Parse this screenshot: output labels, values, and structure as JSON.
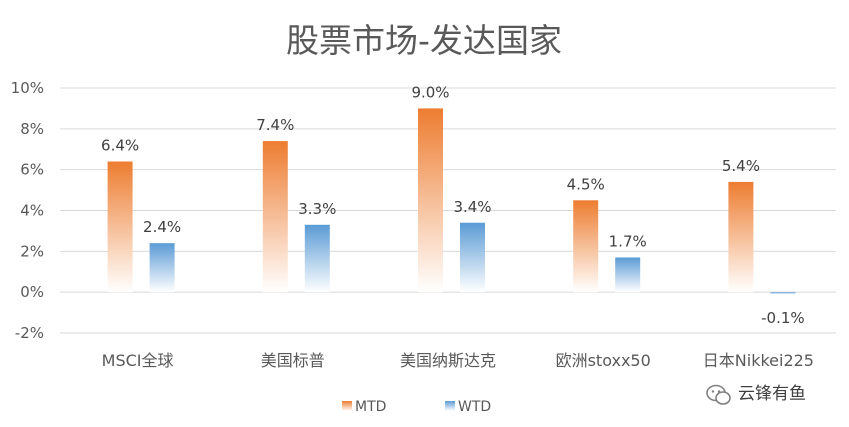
{
  "chart_data": {
    "type": "bar",
    "title": "股票市场-发达国家",
    "categories": [
      "MSCI全球",
      "美国标普",
      "美国纳斯达克",
      "欧洲stoxx50",
      "日本Nikkei225"
    ],
    "series": [
      {
        "name": "MTD",
        "values": [
          6.4,
          7.4,
          9.0,
          4.5,
          5.4
        ],
        "labels": [
          "6.4%",
          "7.4%",
          "9.0%",
          "4.5%",
          "5.4%"
        ],
        "color_top": "#ED7D31",
        "color_bottom": "#FFFFFF"
      },
      {
        "name": "WTD",
        "values": [
          2.4,
          3.3,
          3.4,
          1.7,
          -0.1
        ],
        "labels": [
          "2.4%",
          "3.3%",
          "3.4%",
          "1.7%",
          "-0.1%"
        ],
        "color_top": "#5B9BD5",
        "color_bottom": "#FFFFFF"
      }
    ],
    "ylim": [
      -2,
      10
    ],
    "yticks": [
      -2,
      0,
      2,
      4,
      6,
      8,
      10
    ],
    "ytick_labels": [
      "-2%",
      "0%",
      "2%",
      "4%",
      "6%",
      "8%",
      "10%"
    ],
    "grid": true,
    "legend": "bottom"
  },
  "watermark": {
    "text": "云锋有鱼",
    "icon": "wechat-icon"
  },
  "colors": {
    "grid": "#D9D9D9",
    "text": "#595959"
  }
}
